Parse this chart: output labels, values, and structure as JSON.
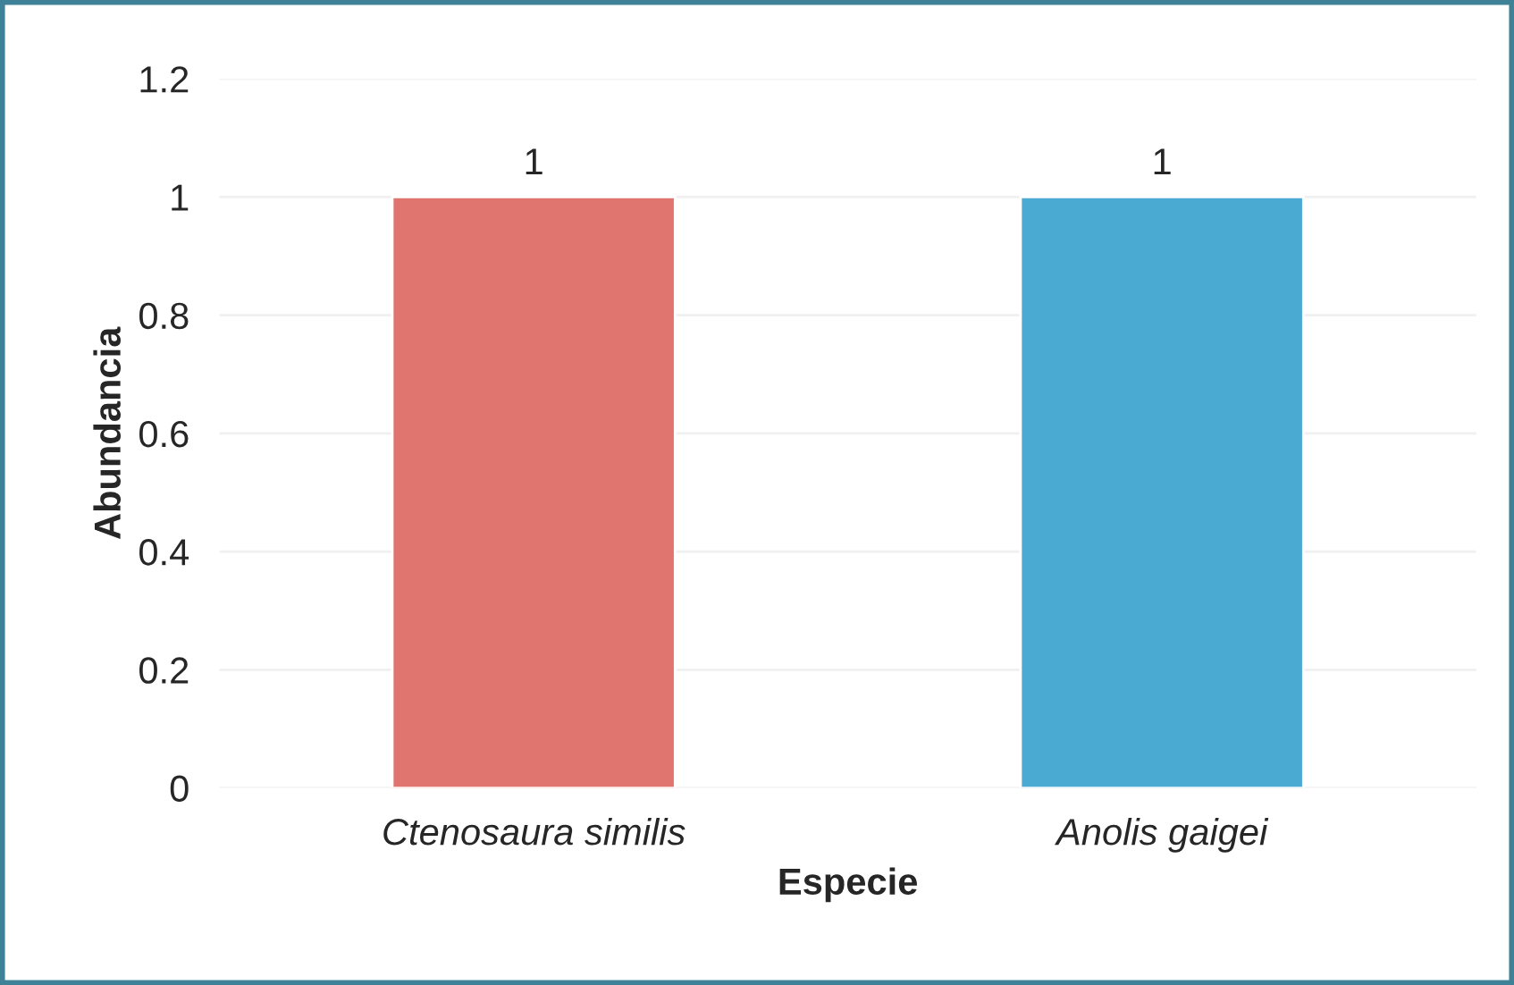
{
  "chart_data": {
    "type": "bar",
    "xlabel": "Especie",
    "ylabel": "Abundancia",
    "categories": [
      "Ctenosaura similis",
      "Anolis gaigei"
    ],
    "values": [
      1,
      1
    ],
    "colors": [
      "#e0756f",
      "#4aaad1"
    ],
    "ylim": [
      0,
      1.2
    ],
    "yticks": [
      0,
      {
        "value": 0.2,
        "label": "0.2"
      },
      {
        "value": 0.4,
        "label": "0.4"
      },
      {
        "value": 0.6,
        "label": "0.6"
      },
      {
        "value": 0.8,
        "label": "0.8"
      },
      1,
      {
        "value": 1.2,
        "label": "1.2"
      }
    ],
    "grid": "y",
    "data_labels": true
  }
}
